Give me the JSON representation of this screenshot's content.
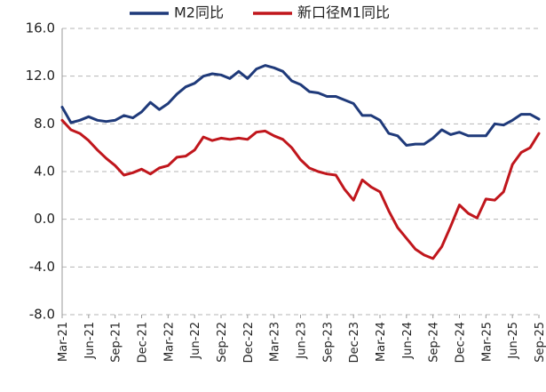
{
  "chart_data": {
    "type": "line",
    "title": "",
    "xlabel": "",
    "ylabel": "",
    "ylim": [
      -8.0,
      16.0
    ],
    "yticks": [
      "16.0",
      "12.0",
      "8.0",
      "4.0",
      "0.0",
      "-4.0",
      "-8.0"
    ],
    "ytick_values": [
      16,
      12,
      8,
      4,
      0,
      -4,
      -8
    ],
    "grid": true,
    "legend_position": "top",
    "x": [
      "Mar-21",
      "Apr-21",
      "May-21",
      "Jun-21",
      "Jul-21",
      "Aug-21",
      "Sep-21",
      "Oct-21",
      "Nov-21",
      "Dec-21",
      "Jan-22",
      "Feb-22",
      "Mar-22",
      "Apr-22",
      "May-22",
      "Jun-22",
      "Jul-22",
      "Aug-22",
      "Sep-22",
      "Oct-22",
      "Nov-22",
      "Dec-22",
      "Jan-23",
      "Feb-23",
      "Mar-23",
      "Apr-23",
      "May-23",
      "Jun-23",
      "Jul-23",
      "Aug-23",
      "Sep-23",
      "Oct-23",
      "Nov-23",
      "Dec-23",
      "Jan-24",
      "Feb-24",
      "Mar-24",
      "Apr-24",
      "May-24",
      "Jun-24",
      "Jul-24",
      "Aug-24",
      "Sep-24",
      "Oct-24",
      "Nov-24",
      "Dec-24",
      "Jan-25",
      "Feb-25",
      "Mar-25",
      "Apr-25",
      "May-25",
      "Jun-25",
      "Jul-25",
      "Aug-25",
      "Sep-25"
    ],
    "xtick_labels": [
      "Mar-21",
      "Jun-21",
      "Sep-21",
      "Dec-21",
      "Mar-22",
      "Jun-22",
      "Sep-22",
      "Dec-22",
      "Mar-23",
      "Jun-23",
      "Sep-23",
      "Dec-23",
      "Mar-24",
      "Jun-24",
      "Sep-24",
      "Dec-24",
      "Mar-25",
      "Jun-25",
      "Sep-25"
    ],
    "series": [
      {
        "name": "M2同比",
        "color": "#1f3a7a",
        "values": [
          9.4,
          8.1,
          8.3,
          8.6,
          8.3,
          8.2,
          8.3,
          8.7,
          8.5,
          9.0,
          9.8,
          9.2,
          9.7,
          10.5,
          11.1,
          11.4,
          12.0,
          12.2,
          12.1,
          11.8,
          12.4,
          11.8,
          12.6,
          12.9,
          12.7,
          12.4,
          11.6,
          11.3,
          10.7,
          10.6,
          10.3,
          10.3,
          10.0,
          9.7,
          8.7,
          8.7,
          8.3,
          7.2,
          7.0,
          6.2,
          6.3,
          6.3,
          6.8,
          7.5,
          7.1,
          7.3,
          7.0,
          7.0,
          7.0,
          8.0,
          7.9,
          8.3,
          8.8,
          8.8,
          8.4
        ]
      },
      {
        "name": "新口径M1同比",
        "color": "#c0161c",
        "values": [
          8.3,
          7.5,
          7.2,
          6.6,
          5.8,
          5.1,
          4.5,
          3.7,
          3.9,
          4.2,
          3.8,
          4.3,
          4.5,
          5.2,
          5.3,
          5.8,
          6.9,
          6.6,
          6.8,
          6.7,
          6.8,
          6.7,
          7.3,
          7.4,
          7.0,
          6.7,
          6.0,
          5.0,
          4.3,
          4.0,
          3.8,
          3.7,
          2.5,
          1.6,
          3.3,
          2.7,
          2.3,
          0.7,
          -0.7,
          -1.6,
          -2.5,
          -3.0,
          -3.3,
          -2.3,
          -0.6,
          1.2,
          0.5,
          0.1,
          1.7,
          1.6,
          2.3,
          4.6,
          5.6,
          6.0,
          7.2
        ]
      }
    ]
  }
}
